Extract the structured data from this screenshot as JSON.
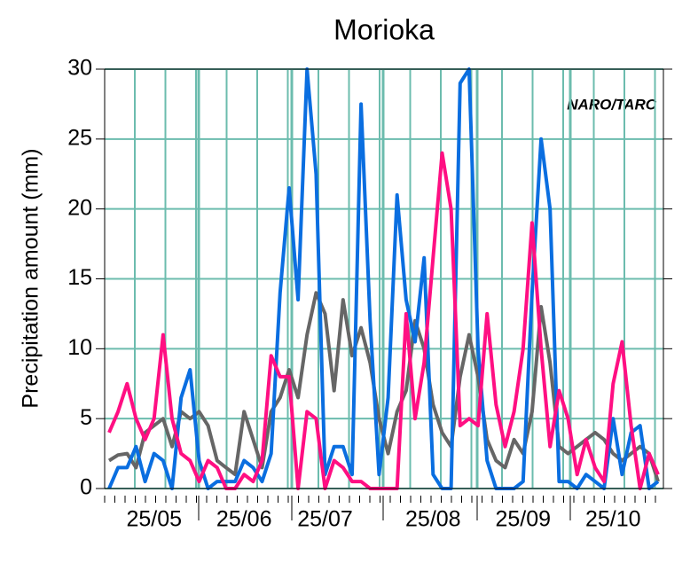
{
  "chart_data": {
    "type": "line",
    "title": "Morioka",
    "y_label": "Precipitation amount (mm)",
    "annotation": "NARO/TARC",
    "categories": [
      null,
      null,
      null,
      null,
      null,
      "25/05",
      null,
      null,
      null,
      null,
      null,
      null,
      null,
      null,
      null,
      "25/06",
      null,
      null,
      null,
      null,
      null,
      null,
      null,
      null,
      "25/07",
      null,
      null,
      null,
      null,
      null,
      null,
      null,
      null,
      null,
      null,
      null,
      "25/08",
      null,
      null,
      null,
      null,
      null,
      null,
      null,
      null,
      null,
      "25/09",
      null,
      null,
      null,
      null,
      null,
      null,
      null,
      null,
      null,
      "25/10",
      null,
      null,
      null,
      null,
      null
    ],
    "series": [
      {
        "color": "#666666",
        "values": [
          2.0,
          2.4,
          2.5,
          1.5,
          4.0,
          4.5,
          5.0,
          3.0,
          5.5,
          5.0,
          5.5,
          4.5,
          2.0,
          1.5,
          1.0,
          5.5,
          3.5,
          1.5,
          5.5,
          6.5,
          8.5,
          6.5,
          11.0,
          14.0,
          12.5,
          7.0,
          13.5,
          9.5,
          11.5,
          9.0,
          5.0,
          2.5,
          5.5,
          7.0,
          12.0,
          10.0,
          6.0,
          4.0,
          3.0,
          8.0,
          11.0,
          8.0,
          3.5,
          2.0,
          1.5,
          3.5,
          2.5,
          5.5,
          13.0,
          9.0,
          3.0,
          2.5,
          3.0,
          3.5,
          4.0,
          3.5,
          2.5,
          2.0,
          2.5,
          3.0,
          2.5,
          0.5
        ]
      },
      {
        "color": "#0a6ee0",
        "values": [
          0,
          1.5,
          1.5,
          3.0,
          0.5,
          2.5,
          2.0,
          0,
          6.5,
          8.5,
          2.0,
          0,
          0.5,
          0.5,
          0.5,
          2.0,
          1.5,
          0.5,
          2.5,
          14.0,
          21.5,
          13.5,
          30,
          22.5,
          1.0,
          3.0,
          3.0,
          1.0,
          27.5,
          12.0,
          1.0,
          6.5,
          21.0,
          13.5,
          10.5,
          16.5,
          1.0,
          0,
          0,
          29.0,
          30,
          10.0,
          2.0,
          0,
          0,
          0,
          0.5,
          14.0,
          25.0,
          20.0,
          0.5,
          0.5,
          0,
          1.0,
          0.5,
          0,
          5.0,
          1.0,
          4.0,
          4.5,
          0,
          0.5
        ]
      },
      {
        "color": "#ff0f82",
        "values": [
          4.0,
          5.5,
          7.5,
          5.0,
          3.5,
          5.0,
          11.0,
          5.0,
          2.5,
          2.0,
          0.5,
          2.0,
          1.5,
          0,
          0,
          1.0,
          0.5,
          2.0,
          9.5,
          8.0,
          8.0,
          0,
          5.5,
          5.0,
          0,
          2.0,
          1.5,
          0.5,
          0.5,
          0,
          0,
          0,
          0,
          12.5,
          5.0,
          9.0,
          16.5,
          24.0,
          20.0,
          4.5,
          5.0,
          4.5,
          12.5,
          6.0,
          3.0,
          5.5,
          10.0,
          19.0,
          10.0,
          3.0,
          7.0,
          5.0,
          1.0,
          3.5,
          1.5,
          0.5,
          7.5,
          10.5,
          4.5,
          0,
          2.5,
          1.0
        ]
      }
    ],
    "ylim": [
      0,
      30
    ],
    "yticks": [
      0,
      5,
      10,
      15,
      20,
      25,
      30
    ],
    "grid": true
  }
}
